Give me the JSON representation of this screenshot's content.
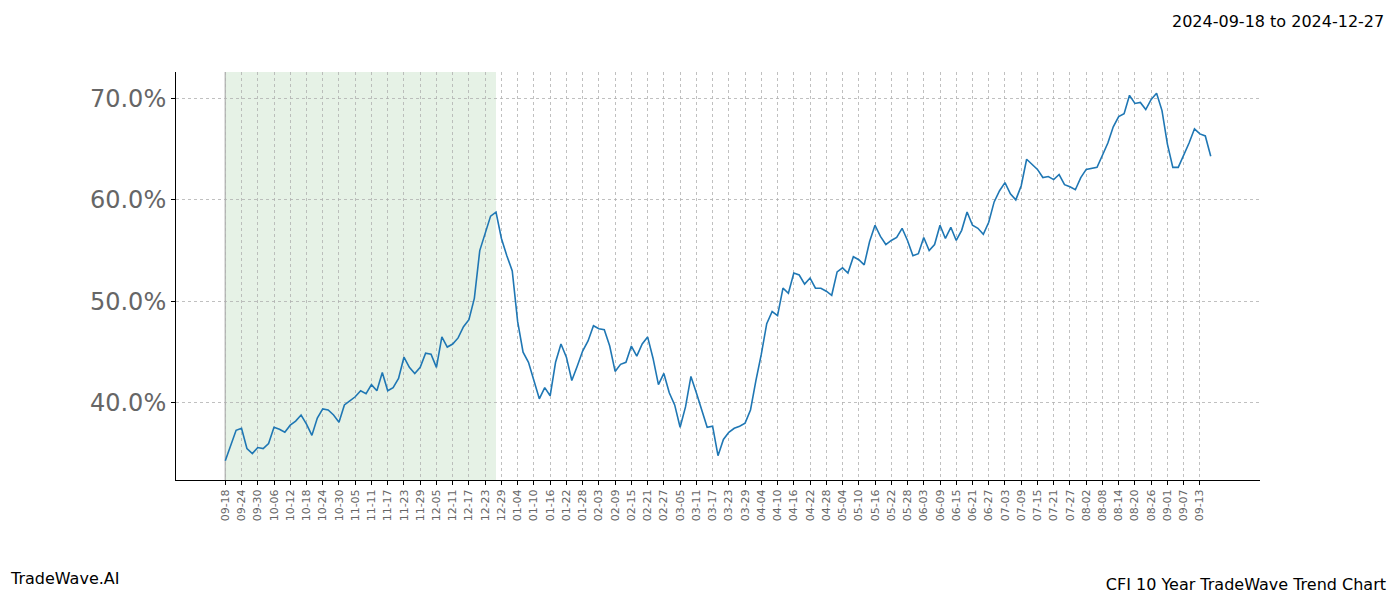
{
  "chart_data": {
    "type": "line",
    "title": "CFI 10 Year TradeWave Trend Chart",
    "subtitle": "2024-09-18 to 2024-12-27",
    "annotations": [
      "TradeWave.AI"
    ],
    "color": "#1f77b4",
    "grid": true,
    "highlight_range": [
      0,
      50
    ],
    "categories": [
      "09-18",
      null,
      null,
      "09-24",
      null,
      null,
      "09-30",
      null,
      null,
      "10-06",
      null,
      null,
      "10-12",
      null,
      null,
      "10-18",
      null,
      null,
      "10-24",
      null,
      null,
      "10-30",
      null,
      null,
      "11-05",
      null,
      null,
      "11-11",
      null,
      null,
      "11-17",
      null,
      null,
      "11-23",
      null,
      null,
      "11-29",
      null,
      null,
      "12-05",
      null,
      null,
      "12-11",
      null,
      null,
      "12-17",
      null,
      null,
      "12-23",
      null,
      null,
      "12-29",
      null,
      null,
      "01-04",
      null,
      null,
      "01-10",
      null,
      null,
      "01-16",
      null,
      null,
      "01-22",
      null,
      null,
      "01-28",
      null,
      null,
      "02-03",
      null,
      null,
      "02-09",
      null,
      null,
      "02-15",
      null,
      null,
      "02-21",
      null,
      null,
      "02-27",
      null,
      null,
      "03-05",
      null,
      null,
      "03-11",
      null,
      null,
      "03-17",
      null,
      null,
      "03-23",
      null,
      null,
      "03-29",
      null,
      null,
      "04-04",
      null,
      null,
      "04-10",
      null,
      null,
      "04-16",
      null,
      null,
      "04-22",
      null,
      null,
      "04-28",
      null,
      null,
      "05-04",
      null,
      null,
      "05-10",
      null,
      null,
      "05-16",
      null,
      null,
      "05-22",
      null,
      null,
      "05-28",
      null,
      null,
      "06-03",
      null,
      null,
      "06-09",
      null,
      null,
      "06-15",
      null,
      null,
      "06-21",
      null,
      null,
      "06-27",
      null,
      null,
      "07-03",
      null,
      null,
      "07-09",
      null,
      null,
      "07-15",
      null,
      null,
      "07-21",
      null,
      null,
      "07-27",
      null,
      null,
      "08-02",
      null,
      null,
      "08-08",
      null,
      null,
      "08-14",
      null,
      null,
      "08-20",
      null,
      null,
      "08-26",
      null,
      null,
      "09-01",
      null,
      null,
      "09-07",
      null,
      null,
      "09-13",
      null,
      null
    ],
    "values": [
      34.3,
      35.9,
      37.3,
      37.5,
      35.5,
      35.0,
      35.6,
      35.5,
      36.0,
      37.6,
      37.4,
      37.1,
      37.8,
      38.2,
      38.8,
      37.9,
      36.8,
      38.5,
      39.4,
      39.3,
      38.8,
      38.1,
      39.8,
      40.2,
      40.6,
      41.2,
      40.9,
      41.8,
      41.2,
      43.0,
      41.2,
      41.5,
      42.4,
      44.5,
      43.5,
      42.9,
      43.5,
      44.9,
      44.8,
      43.5,
      46.5,
      45.5,
      45.8,
      46.4,
      47.5,
      48.2,
      50.3,
      55.0,
      56.8,
      58.4,
      58.8,
      56.2,
      54.5,
      53.0,
      48.0,
      45.0,
      44.0,
      42.3,
      40.4,
      41.5,
      40.7,
      44.0,
      45.8,
      44.5,
      42.2,
      43.6,
      45.1,
      46.1,
      47.6,
      47.3,
      47.2,
      45.6,
      43.1,
      43.8,
      44.0,
      45.6,
      44.6,
      45.8,
      46.5,
      44.4,
      41.8,
      42.9,
      41.0,
      39.8,
      37.6,
      39.6,
      42.6,
      41.0,
      39.3,
      37.6,
      37.7,
      34.8,
      36.4,
      37.1,
      37.5,
      37.7,
      38.0,
      39.3,
      42.2,
      44.8,
      47.8,
      49.0,
      48.6,
      51.3,
      50.8,
      52.8,
      52.6,
      51.7,
      52.3,
      51.3,
      51.3,
      51.0,
      50.6,
      52.9,
      53.3,
      52.8,
      54.4,
      54.1,
      53.6,
      55.9,
      57.5,
      56.4,
      55.6,
      56.0,
      56.3,
      57.2,
      56.0,
      54.5,
      54.7,
      56.3,
      55.0,
      55.6,
      57.5,
      56.2,
      57.3,
      56.0,
      57.0,
      58.8,
      57.5,
      57.2,
      56.6,
      57.8,
      59.8,
      60.9,
      61.7,
      60.6,
      60.0,
      61.4,
      64.0,
      63.5,
      63.0,
      62.2,
      62.3,
      62.0,
      62.5,
      61.5,
      61.3,
      61.0,
      62.2,
      63.0,
      63.1,
      63.2,
      64.4,
      65.6,
      67.2,
      68.2,
      68.5,
      70.3,
      69.5,
      69.6,
      68.9,
      69.9,
      70.5,
      68.8,
      65.5,
      63.2,
      63.2,
      64.4,
      65.6,
      67.0,
      66.5,
      66.3,
      64.3
    ],
    "ylim": [
      32.4,
      72.6
    ],
    "yticks": [
      {
        "value": 40,
        "label": "40.0%"
      },
      {
        "value": 50,
        "label": "50.0%"
      },
      {
        "value": 60,
        "label": "60.0%"
      },
      {
        "value": 70,
        "label": "70.0%"
      }
    ]
  }
}
